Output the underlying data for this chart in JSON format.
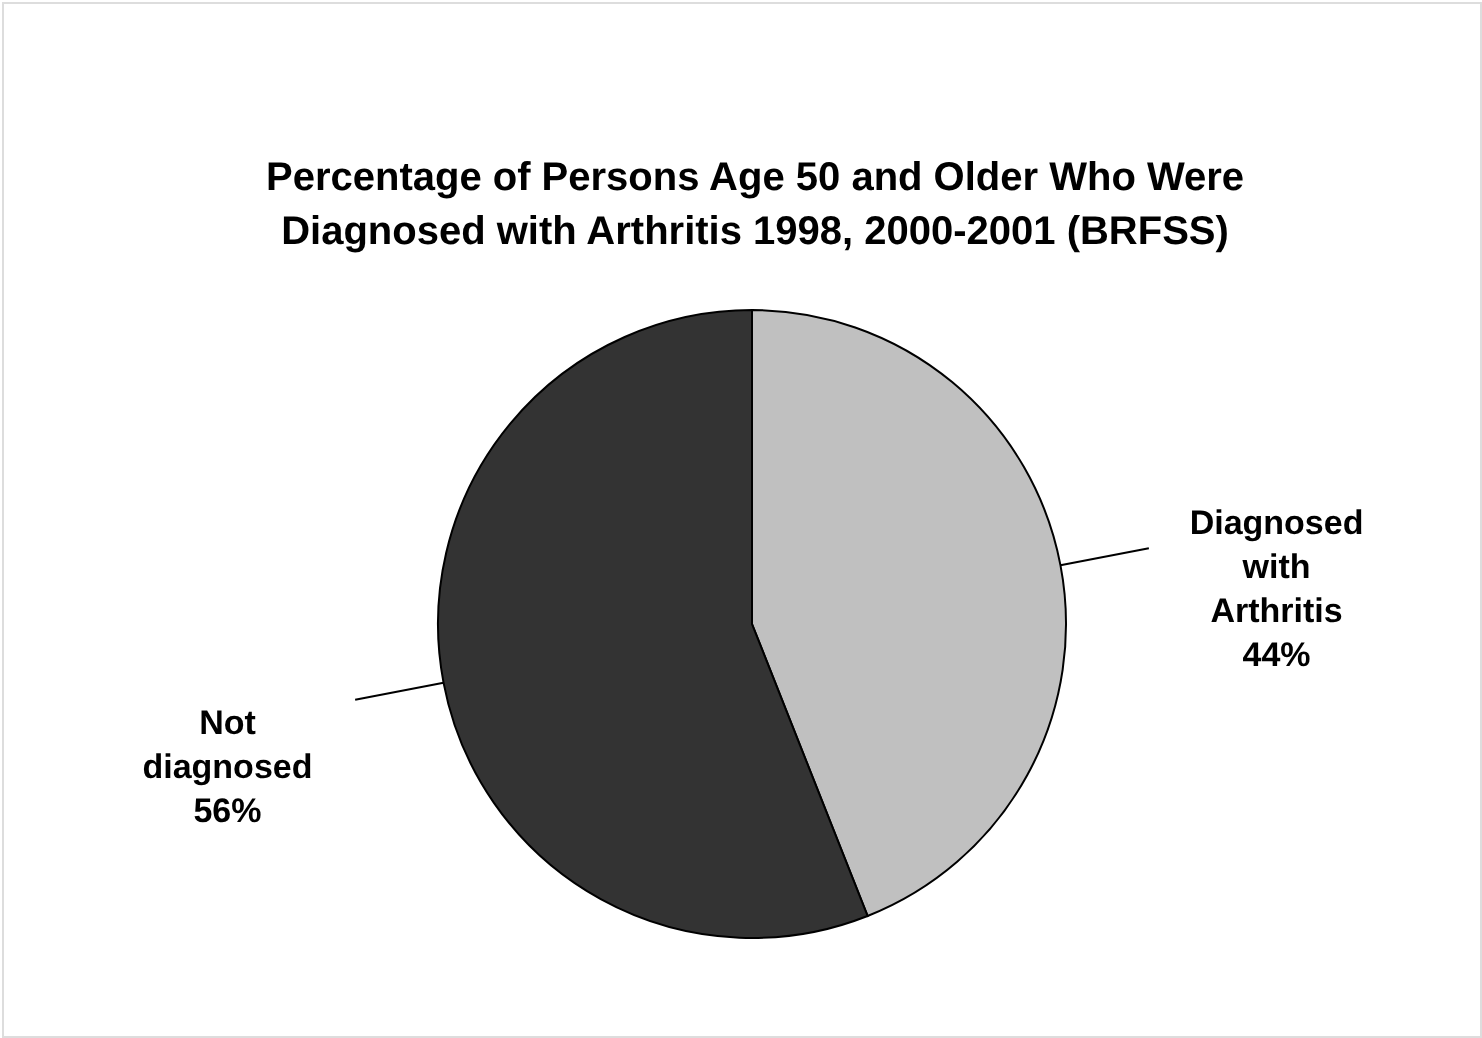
{
  "chart_data": {
    "type": "pie",
    "title": "Percentage of Persons Age 50 and Older Who Were Diagnosed with Arthritis 1998, 2000-2001 (BRFSS)",
    "categories": [
      "Diagnosed with Arthritis",
      "Not diagnosed"
    ],
    "values": [
      44,
      56
    ],
    "value_labels": [
      "44%",
      "56%"
    ],
    "colors": [
      "#c0c0c0",
      "#333333"
    ]
  }
}
